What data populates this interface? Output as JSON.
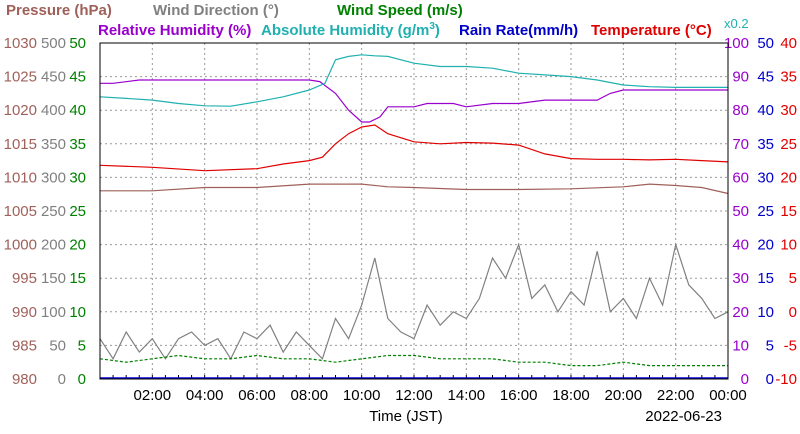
{
  "chart_data": {
    "type": "line",
    "x_title": "Time (JST)",
    "date": "2022-06-23",
    "x_ticks": [
      "02:00",
      "04:00",
      "06:00",
      "08:00",
      "10:00",
      "12:00",
      "14:00",
      "16:00",
      "18:00",
      "20:00",
      "22:00",
      "00:00"
    ],
    "x_range_hours": [
      0,
      24
    ],
    "grid": true,
    "titles": {
      "pressure": "Pressure (hPa)",
      "wind_direction": "Wind Direction (°)",
      "wind_speed": "Wind Speed (m/s)",
      "relative_humidity": "Relative Humidity (%)",
      "absolute_humidity": "Absolute Humidity (g/m",
      "absolute_humidity_sup": "3",
      "absolute_humidity_close": ")",
      "rain_rate": "Rain Rate(mm/h)",
      "temperature": "Temperature (°C)",
      "multiplier": "x0.2"
    },
    "axes": {
      "pressure": {
        "range": [
          980,
          1030
        ],
        "ticks": [
          "1030",
          "1025",
          "1020",
          "1015",
          "1010",
          "1005",
          "1000",
          "995",
          "990",
          "985",
          "980"
        ],
        "color": "#a0605a"
      },
      "wind_direction": {
        "range": [
          0,
          500
        ],
        "ticks": [
          "500",
          "450",
          "400",
          "350",
          "300",
          "250",
          "200",
          "150",
          "100",
          "50",
          "0"
        ],
        "color": "#808080"
      },
      "wind_speed": {
        "range": [
          0,
          50
        ],
        "ticks": [
          "50",
          "45",
          "40",
          "35",
          "30",
          "25",
          "20",
          "15",
          "10",
          "5",
          "0"
        ],
        "color": "#008000"
      },
      "relative_humidity": {
        "range": [
          0,
          100
        ],
        "ticks": [
          "100",
          "90",
          "80",
          "70",
          "60",
          "50",
          "40",
          "30",
          "20",
          "10",
          "0"
        ],
        "color": "#9900cc"
      },
      "rain_rate": {
        "range": [
          0,
          50
        ],
        "ticks": [
          "50",
          "45",
          "40",
          "35",
          "30",
          "25",
          "20",
          "15",
          "10",
          "5",
          "0"
        ],
        "color": "#0000cc"
      },
      "temperature": {
        "range": [
          -10,
          40
        ],
        "ticks": [
          "40",
          "35",
          "30",
          "25",
          "20",
          "15",
          "10",
          "5",
          "0",
          "-5",
          "-10"
        ],
        "color": "#e00000"
      }
    },
    "colors": {
      "absolute_humidity": "#20b0b0",
      "grid": "#999999"
    },
    "series": [
      {
        "name": "Pressure (hPa)",
        "axis": "pressure",
        "x": [
          0,
          2,
          4,
          6,
          8,
          9,
          10,
          11,
          12,
          14,
          16,
          18,
          20,
          21,
          22,
          23,
          24
        ],
        "y": [
          1008,
          1008,
          1008.5,
          1008.5,
          1009,
          1009,
          1009,
          1008.6,
          1008.5,
          1008.2,
          1008.2,
          1008.3,
          1008.6,
          1009,
          1008.8,
          1008.5,
          1007.6
        ]
      },
      {
        "name": "Temperature (°C)",
        "axis": "temperature",
        "x": [
          0,
          2,
          4,
          6,
          7,
          8,
          8.5,
          9,
          9.5,
          10,
          10.5,
          11,
          12,
          13,
          14,
          15,
          16,
          17,
          18,
          19,
          20,
          21,
          22,
          23,
          24
        ],
        "y": [
          21.8,
          21.5,
          21,
          21.3,
          22,
          22.5,
          23,
          25,
          26.5,
          27.5,
          27.8,
          26.5,
          25.3,
          25,
          25.2,
          25.1,
          24.8,
          23.5,
          22.8,
          22.7,
          22.7,
          22.6,
          22.7,
          22.5,
          22.3
        ]
      },
      {
        "name": "Relative Humidity (%)",
        "axis": "relative_humidity",
        "x": [
          0,
          0.5,
          1.5,
          4,
          6,
          8,
          8.4,
          9,
          9.5,
          10,
          10.3,
          10.7,
          11,
          11.5,
          12,
          12.5,
          13,
          13.5,
          14,
          15,
          16,
          17,
          18,
          19,
          19.5,
          20,
          21,
          22,
          23,
          24
        ],
        "y": [
          88,
          88,
          89,
          89,
          89,
          89,
          88.5,
          85,
          80,
          76.5,
          76.5,
          78,
          81,
          81,
          81,
          82,
          82,
          82,
          81,
          82,
          82,
          83,
          83,
          83,
          85,
          86,
          86,
          86,
          86,
          86
        ]
      },
      {
        "name": "Absolute Humidity (g/m3)",
        "axis": "absolute_humidity",
        "x": [
          0,
          1,
          2,
          3,
          4,
          5,
          6,
          7,
          8,
          8.6,
          9,
          9.5,
          10,
          10.5,
          11,
          12,
          13,
          14,
          15,
          16,
          17,
          18,
          19,
          20,
          21,
          22,
          23,
          24
        ],
        "y": [
          84,
          83.5,
          83,
          82,
          81.3,
          81.2,
          82.5,
          84,
          86,
          88,
          95,
          96,
          96.5,
          96.2,
          96,
          94,
          93,
          93,
          92.5,
          91,
          90.5,
          90,
          89,
          87.5,
          87,
          86.8,
          86.8,
          86.8
        ]
      },
      {
        "name": "Wind Direction (°)",
        "axis": "wind_direction",
        "x": [
          0,
          0.5,
          1,
          1.5,
          2,
          2.5,
          3,
          3.5,
          4,
          4.5,
          5,
          5.5,
          6,
          6.5,
          7,
          7.5,
          8,
          8.5,
          9,
          9.5,
          10,
          10.5,
          11,
          11.5,
          12,
          12.5,
          13,
          13.5,
          14,
          14.5,
          15,
          15.5,
          16,
          16.5,
          17,
          17.5,
          18,
          18.5,
          19,
          19.5,
          20,
          20.5,
          21,
          21.5,
          22,
          22.5,
          23,
          23.5,
          24
        ],
        "y": [
          60,
          30,
          70,
          40,
          60,
          30,
          60,
          70,
          50,
          60,
          30,
          70,
          60,
          80,
          40,
          70,
          50,
          30,
          90,
          60,
          110,
          180,
          90,
          70,
          60,
          110,
          80,
          100,
          90,
          120,
          180,
          150,
          200,
          120,
          140,
          100,
          130,
          110,
          190,
          100,
          120,
          90,
          150,
          110,
          200,
          140,
          120,
          90,
          100
        ]
      },
      {
        "name": "Wind Speed (m/s)",
        "axis": "wind_speed",
        "x": [
          0,
          1,
          2,
          3,
          4,
          5,
          6,
          7,
          8,
          9,
          10,
          11,
          12,
          13,
          14,
          15,
          16,
          17,
          18,
          19,
          20,
          21,
          22,
          23,
          24
        ],
        "y": [
          3,
          2.5,
          3,
          3.5,
          3,
          3,
          3.5,
          3,
          3,
          2.5,
          3,
          3.5,
          3.5,
          3,
          3,
          3,
          2.5,
          2.5,
          2,
          2,
          2.5,
          2,
          2,
          2,
          2
        ]
      }
    ]
  }
}
